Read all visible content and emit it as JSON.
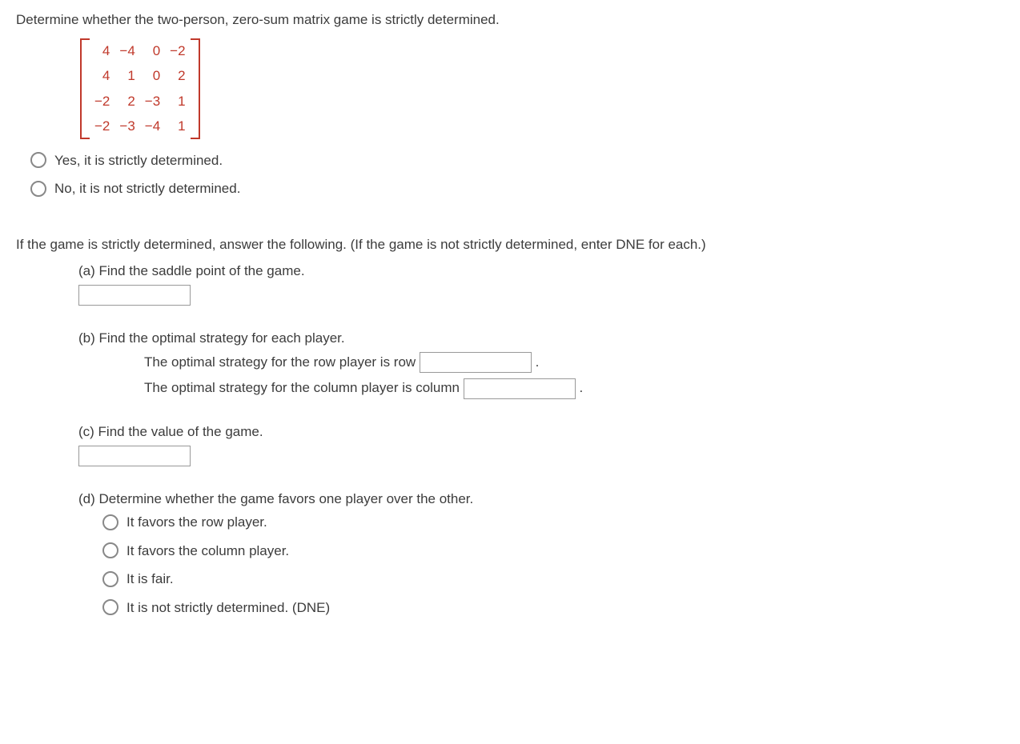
{
  "colors": {
    "text": "#3c3c3c",
    "matrix": "#c0392b",
    "bracket": "#c0392b",
    "radio_border": "#888888",
    "input_border": "#999999",
    "background": "#ffffff"
  },
  "question": "Determine whether the two-person, zero-sum matrix game is strictly determined.",
  "matrix": {
    "rows": [
      [
        "4",
        "−4",
        "0",
        "−2"
      ],
      [
        "4",
        "1",
        "0",
        "2"
      ],
      [
        "−2",
        "2",
        "−3",
        "1"
      ],
      [
        "−2",
        "−3",
        "−4",
        "1"
      ]
    ]
  },
  "main_options": [
    "Yes, it is strictly determined.",
    "No, it is not strictly determined."
  ],
  "followup_intro": "If the game is strictly determined, answer the following. (If the game is not strictly determined, enter DNE for each.)",
  "parts": {
    "a": {
      "label": "(a) Find the saddle point of the game."
    },
    "b": {
      "label": "(b) Find the optimal strategy for each player.",
      "row_line_before": "The optimal strategy for the row player is row ",
      "row_line_after": " .",
      "col_line_before": "The optimal strategy for the column player is column ",
      "col_line_after": " ."
    },
    "c": {
      "label": "(c) Find the value of the game."
    },
    "d": {
      "label": "(d) Determine whether the game favors one player over the other.",
      "options": [
        "It favors the row player.",
        "It favors the column player.",
        "It is fair.",
        "It is not strictly determined. (DNE)"
      ]
    }
  }
}
